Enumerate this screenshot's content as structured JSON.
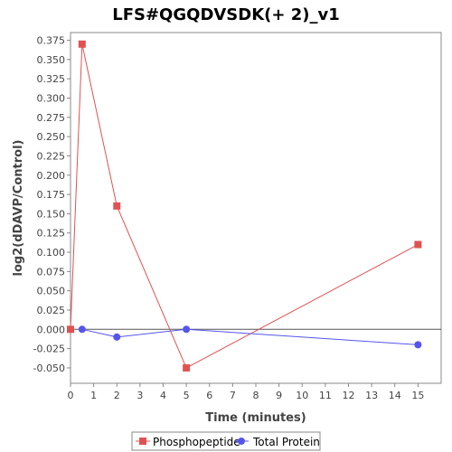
{
  "chart_data": {
    "type": "line",
    "title": "LFS#QGQDVSDK(+ 2)_v1",
    "xlabel": "Time (minutes)",
    "ylabel": "log2(dDAVP/Control)",
    "xlim": [
      0,
      16
    ],
    "ylim": [
      -0.07,
      0.385
    ],
    "x_ticks": [
      0,
      1,
      2,
      3,
      4,
      5,
      6,
      7,
      8,
      9,
      10,
      11,
      12,
      13,
      14,
      15
    ],
    "y_ticks": [
      -0.05,
      -0.025,
      0.0,
      0.025,
      0.05,
      0.075,
      0.1,
      0.125,
      0.15,
      0.175,
      0.2,
      0.225,
      0.25,
      0.275,
      0.3,
      0.325,
      0.35,
      0.375
    ],
    "y_tick_labels": [
      "-0.050",
      "-0.025",
      "0.000",
      "0.025",
      "0.050",
      "0.075",
      "0.100",
      "0.125",
      "0.150",
      "0.175",
      "0.200",
      "0.225",
      "0.250",
      "0.275",
      "0.300",
      "0.325",
      "0.350",
      "0.375"
    ],
    "zero_line": true,
    "grid": false,
    "legend_position": "bottom-center",
    "series": [
      {
        "name": "Phosphopeptide",
        "color": "#e05252",
        "marker": "square",
        "points": [
          {
            "x": 0,
            "y": 0.0
          },
          {
            "x": 0.5,
            "y": 0.37
          },
          {
            "x": 2,
            "y": 0.16
          },
          {
            "x": 5,
            "y": -0.05
          },
          {
            "x": 15,
            "y": 0.11
          }
        ]
      },
      {
        "name": "Total Protein",
        "color": "#5555ee",
        "marker": "circle",
        "points": [
          {
            "x": 0.5,
            "y": 0.0
          },
          {
            "x": 2,
            "y": -0.01
          },
          {
            "x": 5,
            "y": 0.0
          },
          {
            "x": 15,
            "y": -0.02
          }
        ]
      }
    ]
  }
}
